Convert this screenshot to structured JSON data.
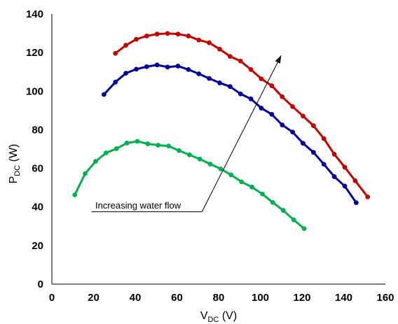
{
  "chart_data": {
    "type": "line",
    "ylabel_main": "P",
    "ylabel_sub": "DC",
    "ylabel_unit": " (W)",
    "xlabel_main": "V",
    "xlabel_sub": "DC",
    "xlabel_unit": " (V)",
    "xlim": [
      0,
      160
    ],
    "ylim": [
      0,
      140
    ],
    "xticks": [
      0,
      20,
      40,
      60,
      80,
      100,
      120,
      140,
      160
    ],
    "yticks": [
      0,
      20,
      40,
      60,
      80,
      100,
      120,
      140
    ],
    "grid": false,
    "annotation": "Increasing water flow",
    "series": [
      {
        "color": "#c00000",
        "x": [
          30.5,
          35.5,
          40.5,
          45.5,
          50.5,
          55.5,
          60.5,
          65.5,
          70.5,
          75.5,
          80.5,
          85.5,
          90.5,
          95.5,
          100.5,
          105.5,
          110.5,
          115.5,
          120.5,
          125.5,
          130.5,
          135.5,
          140.5,
          145.5,
          151.5
        ],
        "y": [
          119.6,
          123.8,
          126.9,
          128.6,
          129.6,
          129.9,
          129.6,
          128.6,
          126.5,
          125.1,
          121.8,
          118,
          115.6,
          111.2,
          106.4,
          102.8,
          97.1,
          92,
          87.1,
          82.1,
          75.4,
          67.3,
          60.6,
          53.6,
          45.2
        ]
      },
      {
        "color": "#000099",
        "x": [
          25,
          30.5,
          35.5,
          40.5,
          45.5,
          50.5,
          55.5,
          60.5,
          65.5,
          70.5,
          75.5,
          80.5,
          85.5,
          90.5,
          95.5,
          100.5,
          105.5,
          110.5,
          115.5,
          120.5,
          125.5,
          130.5,
          135.5,
          140.5,
          146
        ],
        "y": [
          98.3,
          104.7,
          109.3,
          111.4,
          112.7,
          113.6,
          112.5,
          113,
          111.2,
          109,
          106.6,
          104.3,
          102.4,
          98.6,
          96,
          91.2,
          88,
          82.5,
          78.8,
          73,
          68.3,
          62.1,
          55.7,
          50.8,
          42.2
        ]
      },
      {
        "color": "#00b050",
        "x": [
          11,
          16,
          21,
          26,
          31,
          36,
          41,
          46,
          51,
          56,
          61,
          66,
          71,
          76,
          81,
          86,
          91,
          96,
          101,
          106,
          111,
          116,
          121
        ],
        "y": [
          46.3,
          57.3,
          63.6,
          68,
          70.2,
          73.1,
          74,
          72.7,
          72,
          71.6,
          69.2,
          67,
          64.8,
          62.2,
          59.7,
          56.6,
          53,
          50.3,
          46.7,
          42.3,
          38.2,
          33.3,
          28.8
        ]
      }
    ]
  }
}
